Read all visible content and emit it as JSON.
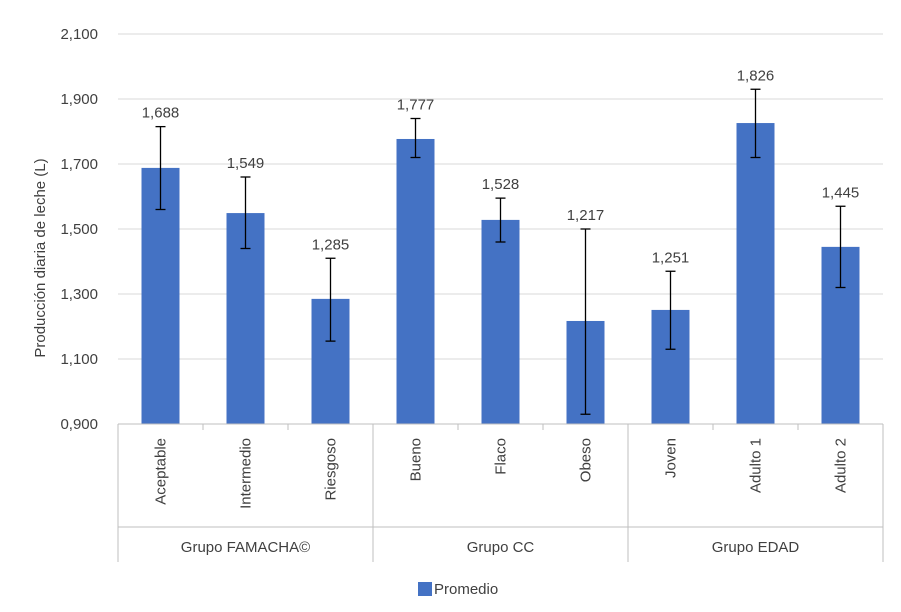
{
  "chart_data": {
    "type": "bar",
    "ylabel": "Producción diaria de leche (L)",
    "ylim": [
      0.9,
      2.1
    ],
    "yticks": [
      "0,900",
      "1,100",
      "1,300",
      "1,500",
      "1,700",
      "1,900",
      "2,100"
    ],
    "ytick_values": [
      0.9,
      1.1,
      1.3,
      1.5,
      1.7,
      1.9,
      2.1
    ],
    "grid": true,
    "legend_position": "bottom",
    "bar_color": "#4472C4",
    "groups": [
      {
        "name": "Grupo FAMACHA©",
        "categories": [
          "Aceptable",
          "Intermedio",
          "Riesgoso"
        ]
      },
      {
        "name": "Grupo CC",
        "categories": [
          "Bueno",
          "Flaco",
          "Obeso"
        ]
      },
      {
        "name": "Grupo EDAD",
        "categories": [
          "Joven",
          "Adulto 1",
          "Adulto 2"
        ]
      }
    ],
    "categories": [
      "Aceptable",
      "Intermedio",
      "Riesgoso",
      "Bueno",
      "Flaco",
      "Obeso",
      "Joven",
      "Adulto 1",
      "Adulto 2"
    ],
    "series": [
      {
        "name": "Promedio",
        "values": [
          1.688,
          1.549,
          1.285,
          1.777,
          1.528,
          1.217,
          1.251,
          1.826,
          1.445
        ],
        "labels": [
          "1,688",
          "1,549",
          "1,285",
          "1,777",
          "1,528",
          "1,217",
          "1,251",
          "1,826",
          "1,445"
        ],
        "error_low": [
          1.56,
          1.44,
          1.155,
          1.72,
          1.46,
          0.93,
          1.13,
          1.72,
          1.32
        ],
        "error_high": [
          1.815,
          1.66,
          1.41,
          1.84,
          1.595,
          1.5,
          1.37,
          1.93,
          1.57
        ]
      }
    ]
  }
}
